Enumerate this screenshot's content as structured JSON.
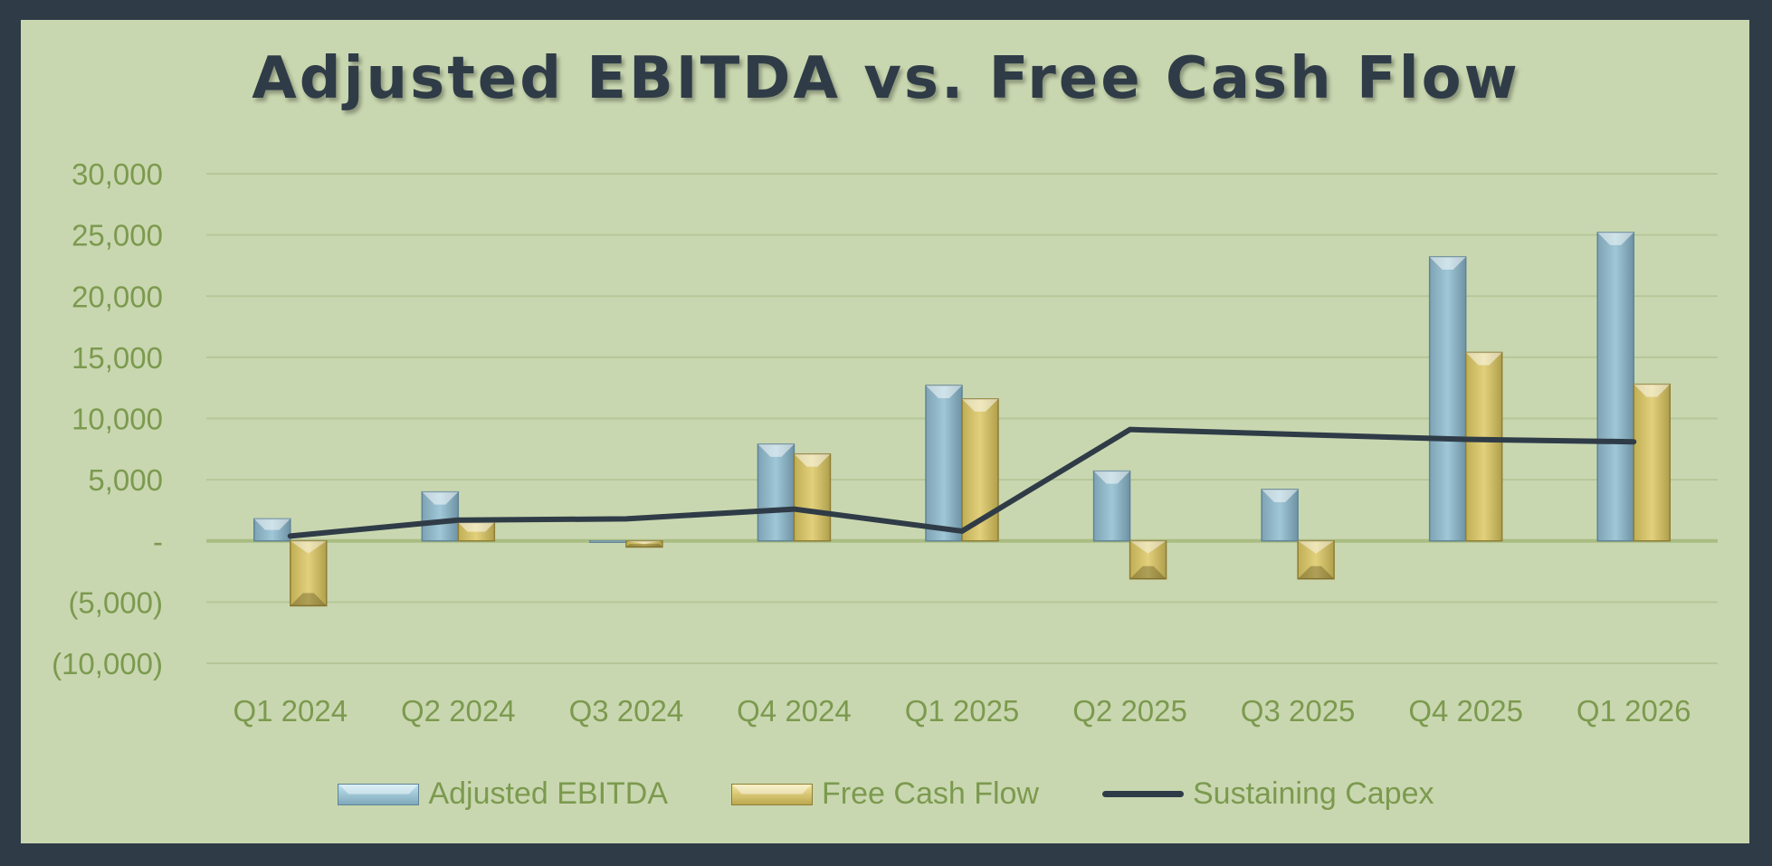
{
  "chart_data": {
    "type": "bar",
    "title": "Adjusted EBITDA vs. Free Cash Flow",
    "categories": [
      "Q1 2024",
      "Q2 2024",
      "Q3 2024",
      "Q4 2024",
      "Q1 2025",
      "Q2 2025",
      "Q3 2025",
      "Q4 2025",
      "Q1 2026"
    ],
    "series": [
      {
        "name": "Adjusted EBITDA",
        "type": "bar",
        "color": "#8fb8c9",
        "values": [
          1800,
          4000,
          0,
          7900,
          12700,
          5700,
          4200,
          23200,
          25200
        ]
      },
      {
        "name": "Free Cash Flow",
        "type": "bar",
        "color": "#d6c46c",
        "values": [
          -5300,
          1500,
          -500,
          7100,
          11600,
          -3100,
          -3100,
          15400,
          12800
        ]
      },
      {
        "name": "Sustaining Capex",
        "type": "line",
        "color": "#2f3c47",
        "values": [
          400,
          1700,
          1800,
          2600,
          800,
          9100,
          8700,
          8300,
          8100
        ]
      }
    ],
    "ylim": [
      -10000,
      30000
    ],
    "yticks": [
      30000,
      25000,
      20000,
      15000,
      10000,
      5000,
      0,
      -5000,
      -10000
    ],
    "ytick_labels": [
      "30,000",
      "25,000",
      "20,000",
      "15,000",
      "10,000",
      "5,000",
      "-",
      "(5,000)",
      "(10,000)"
    ],
    "grid": true,
    "legend_position": "bottom"
  }
}
